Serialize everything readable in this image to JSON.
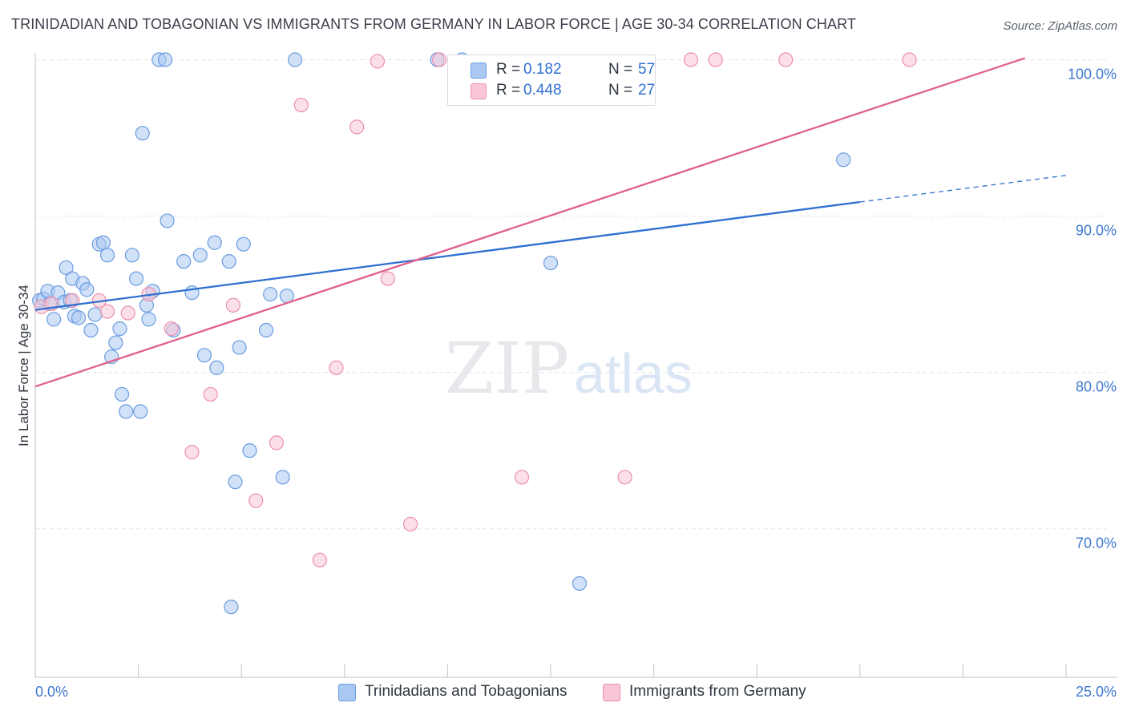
{
  "title": "TRINIDADIAN AND TOBAGONIAN VS IMMIGRANTS FROM GERMANY IN LABOR FORCE | AGE 30-34 CORRELATION CHART",
  "source": "Source: ZipAtlas.com",
  "watermark": {
    "zip": "ZIP",
    "atlas": "atlas"
  },
  "legend": {
    "r_label": "R =",
    "n_label": "N =",
    "rows": [
      {
        "r": "0.182",
        "n": "57",
        "color": "#a9c8f2",
        "border": "#6b9de0"
      },
      {
        "r": "0.448",
        "n": "27",
        "color": "#f9c6d6",
        "border": "#ec8fac"
      }
    ]
  },
  "bottom_legend": [
    {
      "label": "Trinidadians and Tobagonians",
      "color": "#a9c8f2",
      "border": "#6b9de0"
    },
    {
      "label": "Immigrants from Germany",
      "color": "#f9c6d6",
      "border": "#ec8fac"
    }
  ],
  "chart_data": {
    "type": "scatter",
    "title": "TRINIDADIAN AND TOBAGONIAN VS IMMIGRANTS FROM GERMANY IN LABOR FORCE | AGE 30-34 CORRELATION CHART",
    "xlabel": "",
    "ylabel": "In Labor Force | Age 30-34",
    "xlim": [
      0,
      25
    ],
    "ylim": [
      60.5,
      101
    ],
    "x_tick_labels": [
      "0.0%",
      "25.0%"
    ],
    "y_ticks": [
      70,
      80,
      90,
      100
    ],
    "y_tick_labels": [
      "70.0%",
      "80.0%",
      "90.0%",
      "100.0%"
    ],
    "grid": true,
    "legend_position": "top-center",
    "series": [
      {
        "name": "Trinidadians and Tobagonians",
        "color": "#6b9de0",
        "fill": "#a9c8f2",
        "trend": {
          "x": [
            0,
            20
          ],
          "y": [
            84.0,
            90.9
          ],
          "dashed_to": [
            25,
            92.6
          ],
          "color": "#2d6fd0"
        },
        "points": [
          [
            0.1,
            84.6
          ],
          [
            0.2,
            84.7
          ],
          [
            0.3,
            85.2
          ],
          [
            0.35,
            84.4
          ],
          [
            0.45,
            83.4
          ],
          [
            0.55,
            85.1
          ],
          [
            0.7,
            84.5
          ],
          [
            0.75,
            86.7
          ],
          [
            0.85,
            84.6
          ],
          [
            0.9,
            86.0
          ],
          [
            0.95,
            83.6
          ],
          [
            1.05,
            83.5
          ],
          [
            1.15,
            85.7
          ],
          [
            1.25,
            85.3
          ],
          [
            1.35,
            82.7
          ],
          [
            1.45,
            83.7
          ],
          [
            1.55,
            88.2
          ],
          [
            1.65,
            88.3
          ],
          [
            1.75,
            87.5
          ],
          [
            1.85,
            81.0
          ],
          [
            1.95,
            81.9
          ],
          [
            2.05,
            82.8
          ],
          [
            2.1,
            78.6
          ],
          [
            2.2,
            77.5
          ],
          [
            2.35,
            87.5
          ],
          [
            2.45,
            86.0
          ],
          [
            2.55,
            77.5
          ],
          [
            2.6,
            95.3
          ],
          [
            2.7,
            84.3
          ],
          [
            2.75,
            83.4
          ],
          [
            2.85,
            85.2
          ],
          [
            3.0,
            100.0
          ],
          [
            3.15,
            100.0
          ],
          [
            3.2,
            89.7
          ],
          [
            3.35,
            82.7
          ],
          [
            3.6,
            87.1
          ],
          [
            3.8,
            85.1
          ],
          [
            4.0,
            87.5
          ],
          [
            4.1,
            81.1
          ],
          [
            4.35,
            88.3
          ],
          [
            4.4,
            80.3
          ],
          [
            4.7,
            87.1
          ],
          [
            4.85,
            73.0
          ],
          [
            4.95,
            81.6
          ],
          [
            5.05,
            88.2
          ],
          [
            5.2,
            75.0
          ],
          [
            5.6,
            82.7
          ],
          [
            5.7,
            85.0
          ],
          [
            6.0,
            73.3
          ],
          [
            6.1,
            84.9
          ],
          [
            6.3,
            100.0
          ],
          [
            4.75,
            65.0
          ],
          [
            9.75,
            100.0
          ],
          [
            10.35,
            100.0
          ],
          [
            12.5,
            87.0
          ],
          [
            13.2,
            66.5
          ],
          [
            19.6,
            93.6
          ]
        ]
      },
      {
        "name": "Immigrants from Germany",
        "color": "#ec8fac",
        "fill": "#f9c6d6",
        "trend": {
          "x": [
            0,
            24
          ],
          "y": [
            79.1,
            100.1
          ],
          "color": "#e0608a"
        },
        "points": [
          [
            0.15,
            84.2
          ],
          [
            0.4,
            84.4
          ],
          [
            0.9,
            84.6
          ],
          [
            1.55,
            84.6
          ],
          [
            1.75,
            83.9
          ],
          [
            2.25,
            83.8
          ],
          [
            2.75,
            85.0
          ],
          [
            3.3,
            82.8
          ],
          [
            3.8,
            74.9
          ],
          [
            4.25,
            78.6
          ],
          [
            4.8,
            84.3
          ],
          [
            5.35,
            71.8
          ],
          [
            5.85,
            75.5
          ],
          [
            6.45,
            97.1
          ],
          [
            6.9,
            68.0
          ],
          [
            7.3,
            80.3
          ],
          [
            7.8,
            95.7
          ],
          [
            8.3,
            99.9
          ],
          [
            8.55,
            86.0
          ],
          [
            9.1,
            70.3
          ],
          [
            9.8,
            100.0
          ],
          [
            11.8,
            73.3
          ],
          [
            14.3,
            73.3
          ],
          [
            15.9,
            100.0
          ],
          [
            16.5,
            100.0
          ],
          [
            18.2,
            100.0
          ],
          [
            21.2,
            100.0
          ]
        ]
      }
    ]
  }
}
